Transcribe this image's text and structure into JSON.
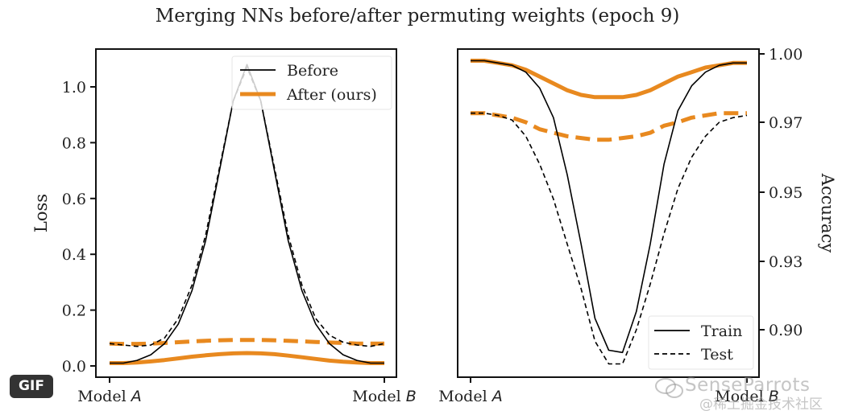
{
  "badge": {
    "label": "GIF"
  },
  "watermark": {
    "name": "SenseParrots",
    "sub": "@稀土掘金技术社区",
    "icon": "wechat-icon"
  },
  "colors": {
    "before": "#000000",
    "after": "#e8891f",
    "frame": "#111111",
    "text": "#222222"
  },
  "chart_data": [
    {
      "type": "line",
      "title": "Merging NNs before/after permuting weights (epoch 9)",
      "panel": "left",
      "xlabel": "",
      "ylabel": "Loss",
      "x_tick_labels": [
        {
          "pre": "Model ",
          "it": "A"
        },
        {
          "pre": "Model ",
          "it": "B"
        }
      ],
      "x": [
        0,
        0.05,
        0.1,
        0.15,
        0.2,
        0.25,
        0.3,
        0.35,
        0.4,
        0.45,
        0.5,
        0.55,
        0.6,
        0.65,
        0.7,
        0.75,
        0.8,
        0.85,
        0.9,
        0.95,
        1.0
      ],
      "ylim": [
        -0.03,
        1.12
      ],
      "yticks": [
        0.0,
        0.2,
        0.4,
        0.6,
        0.8,
        1.0
      ],
      "ytick_labels": [
        "0.0",
        "0.2",
        "0.4",
        "0.6",
        "0.8",
        "1.0"
      ],
      "legend": {
        "placement": "top-right",
        "entries": [
          "Before",
          "After (ours)"
        ]
      },
      "series": [
        {
          "name": "Before (train)",
          "style": "solid",
          "group": "before",
          "values": [
            0.01,
            0.01,
            0.02,
            0.04,
            0.08,
            0.15,
            0.27,
            0.45,
            0.7,
            0.95,
            1.08,
            0.95,
            0.7,
            0.45,
            0.27,
            0.15,
            0.08,
            0.04,
            0.02,
            0.01,
            0.01
          ]
        },
        {
          "name": "Before (test)",
          "style": "dashed",
          "group": "before",
          "values": [
            0.08,
            0.075,
            0.07,
            0.075,
            0.1,
            0.17,
            0.29,
            0.47,
            0.71,
            0.95,
            1.07,
            0.95,
            0.71,
            0.47,
            0.29,
            0.17,
            0.11,
            0.085,
            0.075,
            0.07,
            0.08
          ]
        },
        {
          "name": "After (train)",
          "style": "solid",
          "group": "after",
          "values": [
            0.01,
            0.01,
            0.012,
            0.016,
            0.021,
            0.027,
            0.033,
            0.038,
            0.042,
            0.045,
            0.046,
            0.045,
            0.042,
            0.037,
            0.031,
            0.025,
            0.019,
            0.015,
            0.012,
            0.01,
            0.01
          ]
        },
        {
          "name": "After (test)",
          "style": "dashed",
          "group": "after",
          "values": [
            0.08,
            0.079,
            0.079,
            0.08,
            0.082,
            0.085,
            0.088,
            0.09,
            0.092,
            0.093,
            0.093,
            0.093,
            0.092,
            0.09,
            0.088,
            0.086,
            0.084,
            0.082,
            0.08,
            0.08,
            0.08
          ]
        }
      ]
    },
    {
      "type": "line",
      "panel": "right",
      "xlabel": "",
      "ylabel": "Accuracy",
      "y_axis_side": "right",
      "y_scale": "nonlinear (ticks evenly spaced)",
      "x_tick_labels": [
        {
          "pre": "Model ",
          "it": "A"
        },
        {
          "pre": "Model ",
          "it": "B"
        }
      ],
      "x": [
        0,
        0.05,
        0.1,
        0.15,
        0.2,
        0.25,
        0.3,
        0.35,
        0.4,
        0.45,
        0.5,
        0.55,
        0.6,
        0.65,
        0.7,
        0.75,
        0.8,
        0.85,
        0.9,
        0.95,
        1.0
      ],
      "yticks": [
        1.0,
        0.97,
        0.95,
        0.93,
        0.9
      ],
      "ytick_labels": [
        "1.00",
        "0.97",
        "0.95",
        "0.93",
        "0.90"
      ],
      "ylim": [
        0.88,
        1.001
      ],
      "legend": {
        "placement": "bottom-right",
        "entries": [
          "Train",
          "Test"
        ]
      },
      "series": [
        {
          "name": "Before (train)",
          "style": "solid",
          "group": "before",
          "values": [
            0.997,
            0.997,
            0.996,
            0.995,
            0.992,
            0.985,
            0.972,
            0.955,
            0.935,
            0.905,
            0.891,
            0.89,
            0.908,
            0.935,
            0.958,
            0.975,
            0.986,
            0.992,
            0.995,
            0.996,
            0.996
          ]
        },
        {
          "name": "Before (test)",
          "style": "dashed",
          "group": "before",
          "values": [
            0.974,
            0.974,
            0.973,
            0.971,
            0.966,
            0.958,
            0.948,
            0.935,
            0.918,
            0.895,
            0.885,
            0.885,
            0.9,
            0.92,
            0.938,
            0.951,
            0.96,
            0.966,
            0.97,
            0.972,
            0.973
          ]
        },
        {
          "name": "After (train)",
          "style": "solid",
          "group": "after",
          "values": [
            0.997,
            0.997,
            0.996,
            0.995,
            0.993,
            0.99,
            0.987,
            0.984,
            0.982,
            0.981,
            0.981,
            0.981,
            0.982,
            0.984,
            0.987,
            0.99,
            0.992,
            0.994,
            0.995,
            0.996,
            0.996
          ]
        },
        {
          "name": "After (test)",
          "style": "dashed",
          "group": "after",
          "values": [
            0.974,
            0.974,
            0.973,
            0.972,
            0.97,
            0.968,
            0.967,
            0.966,
            0.9655,
            0.965,
            0.965,
            0.9655,
            0.966,
            0.967,
            0.969,
            0.97,
            0.972,
            0.973,
            0.974,
            0.974,
            0.974
          ]
        }
      ]
    }
  ]
}
